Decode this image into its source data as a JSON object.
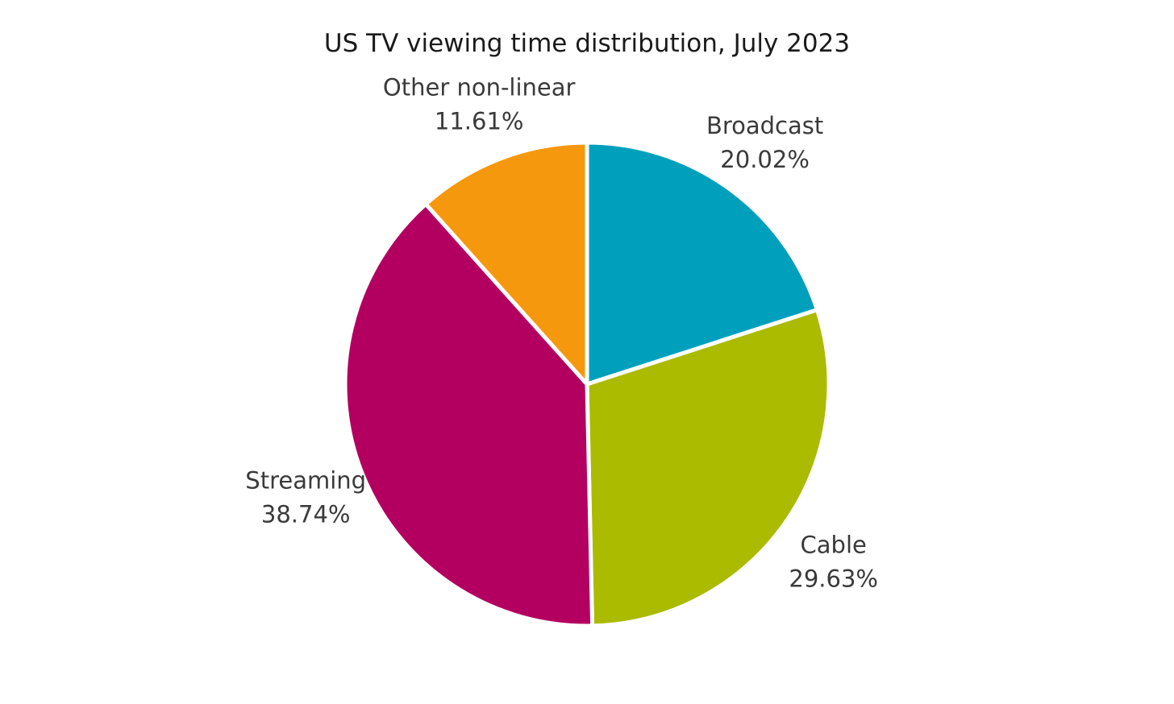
{
  "chart_data": {
    "type": "pie",
    "title": "US TV viewing time distribution, July 2023",
    "slices": [
      {
        "label": "Broadcast",
        "value": 20.02,
        "value_label": "20.02%",
        "color": "#00A0BC"
      },
      {
        "label": "Cable",
        "value": 29.63,
        "value_label": "29.63%",
        "color": "#AABB00"
      },
      {
        "label": "Streaming",
        "value": 38.74,
        "value_label": "38.74%",
        "color": "#B30060"
      },
      {
        "label": "Other non-linear",
        "value": 11.61,
        "value_label": "11.61%",
        "color": "#F5980E"
      }
    ],
    "start_angle": "12 o'clock",
    "direction": "clockwise",
    "legend": "none",
    "slice_separator_color": "#FFFFFF"
  }
}
